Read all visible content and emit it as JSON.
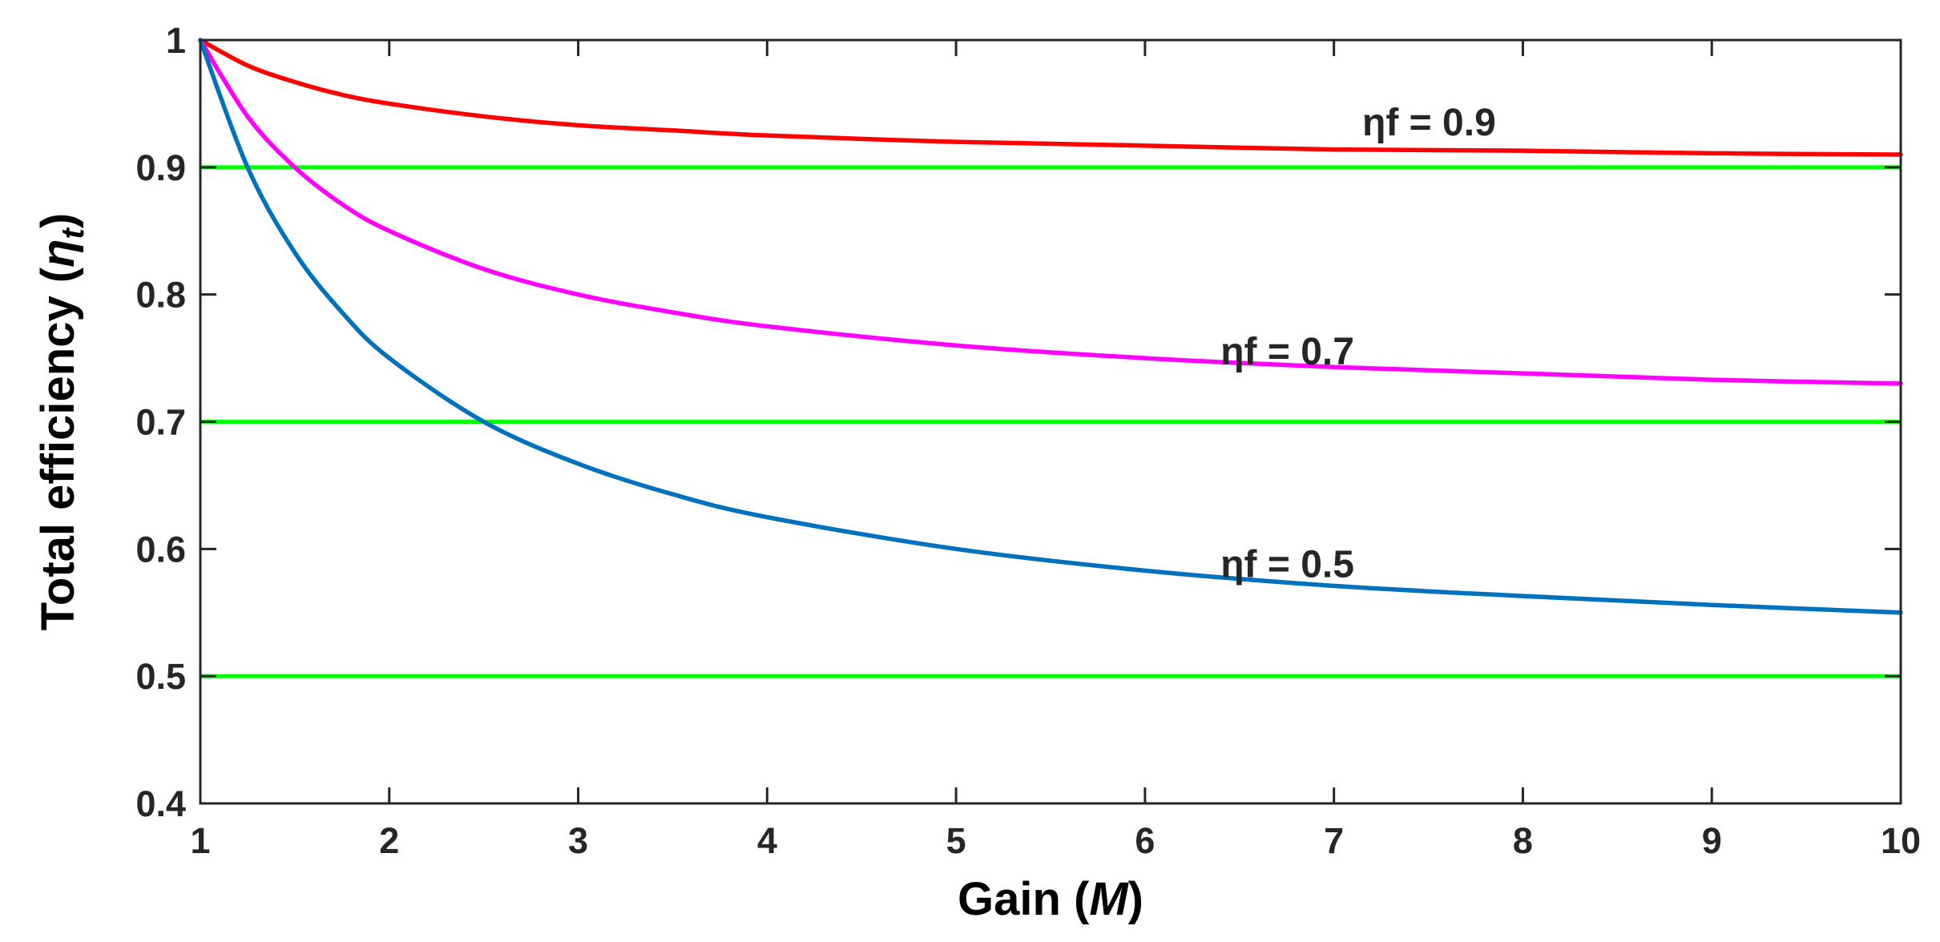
{
  "chart_data": {
    "type": "line",
    "title": "",
    "xlabel": "Gain (M)",
    "xlabel_parts": {
      "prefix": "Gain (",
      "symbol": "M",
      "suffix": ")"
    },
    "ylabel": "Total efficiency (ηt)",
    "ylabel_parts": {
      "prefix": "Total efficiency (",
      "symbol": "η",
      "subscript": "t",
      "suffix": ")"
    },
    "xlim": [
      1,
      10
    ],
    "ylim": [
      0.4,
      1
    ],
    "xticks": [
      1,
      2,
      3,
      4,
      5,
      6,
      7,
      8,
      9,
      10
    ],
    "xtick_labels": [
      "1",
      "2",
      "3",
      "4",
      "5",
      "6",
      "7",
      "8",
      "9",
      "10"
    ],
    "yticks": [
      0.4,
      0.5,
      0.6,
      0.7,
      0.8,
      0.9,
      1.0
    ],
    "ytick_labels": [
      "0.4",
      "0.5",
      "0.6",
      "0.7",
      "0.8",
      "0.9",
      "1"
    ],
    "grid": false,
    "series": [
      {
        "name": "ηf = 0.9",
        "color": "#ff0000",
        "x": [
          1,
          1.25,
          1.5,
          1.75,
          2,
          2.5,
          3,
          3.5,
          4,
          5,
          6,
          7,
          8,
          9,
          10
        ],
        "y": [
          1.0,
          0.98,
          0.967,
          0.957,
          0.95,
          0.94,
          0.933,
          0.929,
          0.925,
          0.92,
          0.917,
          0.914,
          0.913,
          0.911,
          0.91
        ]
      },
      {
        "name": "ηf = 0.7",
        "color": "#ff00ff",
        "x": [
          1,
          1.25,
          1.5,
          1.75,
          2,
          2.5,
          3,
          3.5,
          4,
          5,
          6,
          7,
          8,
          9,
          10
        ],
        "y": [
          1.0,
          0.94,
          0.9,
          0.871,
          0.85,
          0.82,
          0.8,
          0.786,
          0.775,
          0.76,
          0.75,
          0.743,
          0.738,
          0.733,
          0.73
        ]
      },
      {
        "name": "ηf = 0.5",
        "color": "#0072bd",
        "x": [
          1,
          1.25,
          1.5,
          1.75,
          2,
          2.5,
          3,
          3.5,
          4,
          5,
          6,
          7,
          8,
          9,
          10
        ],
        "y": [
          1.0,
          0.9,
          0.833,
          0.786,
          0.75,
          0.7,
          0.667,
          0.643,
          0.625,
          0.6,
          0.583,
          0.571,
          0.563,
          0.556,
          0.55
        ]
      }
    ],
    "reference_lines": [
      {
        "y": 0.9,
        "color": "#00ff00"
      },
      {
        "y": 0.7,
        "color": "#00ff00"
      },
      {
        "y": 0.5,
        "color": "#00ff00"
      }
    ],
    "annotations": [
      {
        "text": "ηf = 0.9",
        "x": 7.15,
        "y": 0.925
      },
      {
        "text": "ηf = 0.7",
        "x": 6.4,
        "y": 0.745
      },
      {
        "text": "ηf = 0.5",
        "x": 6.4,
        "y": 0.578
      }
    ]
  }
}
